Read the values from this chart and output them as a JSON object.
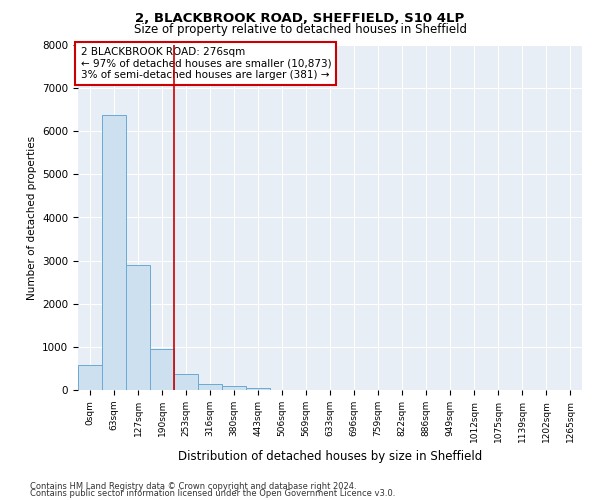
{
  "title1": "2, BLACKBROOK ROAD, SHEFFIELD, S10 4LP",
  "title2": "Size of property relative to detached houses in Sheffield",
  "xlabel": "Distribution of detached houses by size in Sheffield",
  "ylabel": "Number of detached properties",
  "bar_color": "#cce0f0",
  "bar_edge_color": "#6aaad4",
  "categories": [
    "0sqm",
    "63sqm",
    "127sqm",
    "190sqm",
    "253sqm",
    "316sqm",
    "380sqm",
    "443sqm",
    "506sqm",
    "569sqm",
    "633sqm",
    "696sqm",
    "759sqm",
    "822sqm",
    "886sqm",
    "949sqm",
    "1012sqm",
    "1075sqm",
    "1139sqm",
    "1202sqm",
    "1265sqm"
  ],
  "values": [
    580,
    6380,
    2900,
    960,
    360,
    150,
    90,
    50,
    0,
    0,
    0,
    0,
    0,
    0,
    0,
    0,
    0,
    0,
    0,
    0,
    0
  ],
  "ylim": [
    0,
    8000
  ],
  "yticks": [
    0,
    1000,
    2000,
    3000,
    4000,
    5000,
    6000,
    7000,
    8000
  ],
  "property_line_x": 3.5,
  "annotation_box_text": "2 BLACKBROOK ROAD: 276sqm\n← 97% of detached houses are smaller (10,873)\n3% of semi-detached houses are larger (381) →",
  "annotation_box_color": "#cc0000",
  "footer1": "Contains HM Land Registry data © Crown copyright and database right 2024.",
  "footer2": "Contains public sector information licensed under the Open Government Licence v3.0.",
  "bg_color": "#ffffff",
  "plot_bg_color": "#e8eef5",
  "grid_color": "#ffffff"
}
